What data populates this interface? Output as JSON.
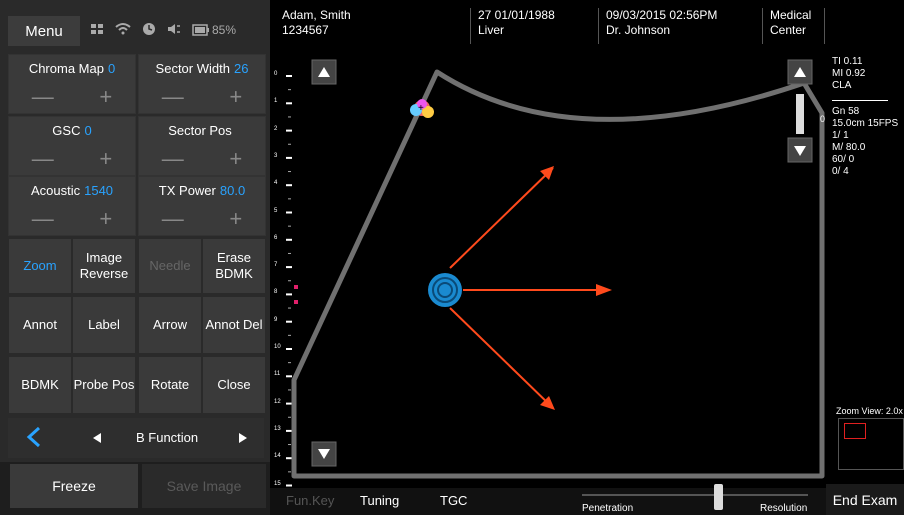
{
  "menu": {
    "label": "Menu"
  },
  "status": {
    "battery": "85%"
  },
  "controls": [
    {
      "label": "Chroma Map",
      "value": "0"
    },
    {
      "label": "Sector Width",
      "value": "26"
    },
    {
      "label": "GSC",
      "value": "0"
    },
    {
      "label": "Sector Pos",
      "value": ""
    },
    {
      "label": "Acoustic",
      "value": "1540"
    },
    {
      "label": "TX Power",
      "value": "80.0"
    }
  ],
  "pm": {
    "minus": "—",
    "plus": "+"
  },
  "buttons": [
    {
      "label": "Zoom"
    },
    {
      "label": "Image Reverse"
    },
    {
      "label": "Needle"
    },
    {
      "label": "Erase BDMK"
    },
    {
      "label": "Annot"
    },
    {
      "label": "Label"
    },
    {
      "label": "Arrow"
    },
    {
      "label": "Annot Del"
    },
    {
      "label": "BDMK"
    },
    {
      "label": "Probe Pos"
    },
    {
      "label": "Rotate"
    },
    {
      "label": "Close"
    }
  ],
  "bfunction": {
    "label": "B Function"
  },
  "freeze": {
    "label": "Freeze"
  },
  "save_image": {
    "label": "Save Image"
  },
  "header": {
    "patient_name": "Adam, Smith",
    "patient_id": "1234567",
    "age_dob": "27 01/01/1988",
    "exam": "Liver",
    "datetime": "09/03/2015 02:56PM",
    "doctor": "Dr. Johnson",
    "center_line1": "Medical",
    "center_line2": "Center"
  },
  "right_info": {
    "ti": "TI 0.11",
    "mi": "MI 0.92",
    "cla": "CLA",
    "gn": "Gn 58",
    "depth": "15.0cm 15FPS",
    "frame": "1/ 1",
    "m": "M/ 80.0",
    "p1": "60/ 0",
    "p2": "0/ 4",
    "zoom_view": "Zoom View: 2.0x"
  },
  "depth_scale": {
    "top_value": "0",
    "ticks": [
      "0",
      "1",
      "2",
      "3",
      "4",
      "5",
      "6",
      "7",
      "8",
      "9",
      "10",
      "11",
      "12",
      "13",
      "14",
      "15"
    ]
  },
  "bottom": {
    "fun_key": "Fun.Key",
    "tuning": "Tuning",
    "tgc": "TGC",
    "penetration": "Penetration",
    "resolution": "Resolution",
    "end_exam": "End Exam"
  },
  "colors": {
    "accent": "#29a3ff",
    "arrow": "#ff4a1c",
    "sector": "#707070"
  }
}
